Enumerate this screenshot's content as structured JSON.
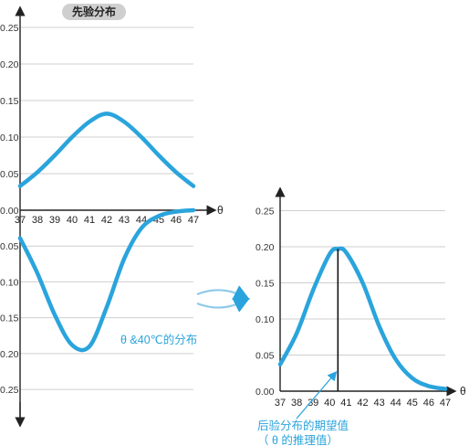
{
  "chart_data": [
    {
      "id": "prior",
      "type": "line",
      "title": "先验分布",
      "xlabel": "θ",
      "x": [
        37,
        38,
        39,
        40,
        41,
        42,
        43,
        44,
        45,
        46,
        47
      ],
      "values": [
        0.033,
        0.052,
        0.075,
        0.1,
        0.121,
        0.132,
        0.121,
        0.1,
        0.075,
        0.052,
        0.033
      ],
      "ylim": [
        0,
        0.25
      ],
      "yticks": [
        "0.25",
        "0.20",
        "0.15",
        "0.10",
        "0.05",
        "0.00"
      ],
      "grid": true
    },
    {
      "id": "likelihood",
      "type": "line",
      "orientation": "inverted",
      "annotation": "θ &40℃的分布",
      "x": [
        37,
        38,
        39,
        40,
        41,
        42,
        43,
        44,
        45,
        46,
        47
      ],
      "values": [
        0.039,
        0.088,
        0.146,
        0.188,
        0.19,
        0.135,
        0.068,
        0.025,
        0.008,
        0.002,
        0.0
      ],
      "ylim": [
        0,
        0.25
      ],
      "yticks": [
        "0.05",
        "0.10",
        "0.15",
        "0.20",
        "0.25"
      ],
      "grid": true
    },
    {
      "id": "posterior",
      "type": "line",
      "xlabel": "θ",
      "x": [
        37,
        38,
        39,
        40,
        40.5,
        41,
        42,
        43,
        44,
        45,
        46,
        47
      ],
      "values": [
        0.037,
        0.08,
        0.14,
        0.19,
        0.197,
        0.192,
        0.15,
        0.09,
        0.044,
        0.018,
        0.007,
        0.003
      ],
      "ylim": [
        0,
        0.25
      ],
      "yticks": [
        "0.25",
        "0.20",
        "0.15",
        "0.10",
        "0.05",
        "0.00"
      ],
      "grid": true,
      "marker_x": 40.5,
      "annotation_line1": "后验分布的期望值",
      "annotation_line2": "（ θ 的推理值）"
    }
  ],
  "colors": {
    "curve": "#2aa4dc",
    "grid": "#cfcfcf",
    "axis": "#222222",
    "label_box": "#cfcfcf"
  },
  "icons": {
    "transition": "crossing-arrows-icon"
  }
}
